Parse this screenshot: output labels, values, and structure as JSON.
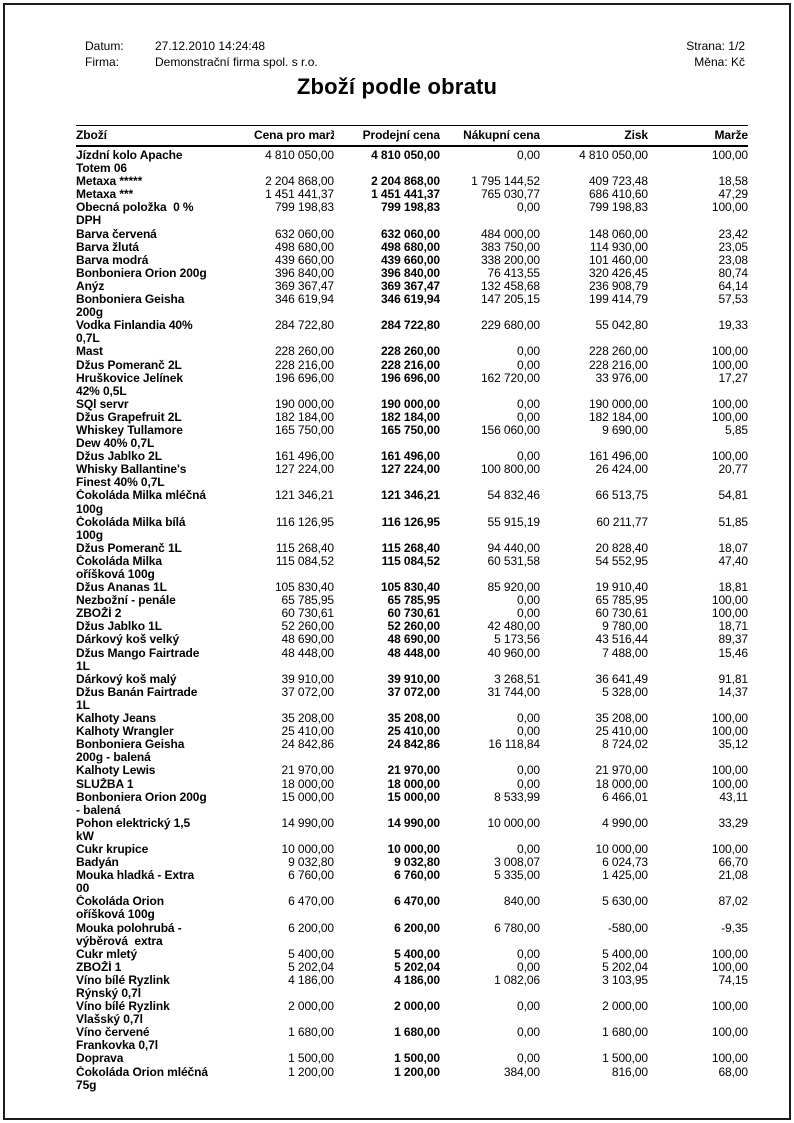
{
  "header": {
    "date_label": "Datum:",
    "date_value": "27.12.2010 14:24:48",
    "company_label": "Firma:",
    "company_value": "Demonstrační firma spol. s r.o.",
    "page_info": "Strana: 1/2",
    "currency_info": "Měna: Kč"
  },
  "title": "Zboží podle obratu",
  "table": {
    "columns": [
      "Zboží",
      "Cena pro marži",
      "Prodejní cena",
      "Nákupní cena",
      "Zisk",
      "Marže"
    ],
    "rows": [
      {
        "name": "Jízdní kolo Apache\nTotem 06",
        "cena_pro_marzi": "4 810 050,00",
        "prodejni_cena": "4 810 050,00",
        "nakupni_cena": "0,00",
        "zisk": "4 810 050,00",
        "marze": "100,00"
      },
      {
        "name": "Metaxa *****",
        "cena_pro_marzi": "2 204 868,00",
        "prodejni_cena": "2 204 868,00",
        "nakupni_cena": "1 795 144,52",
        "zisk": "409 723,48",
        "marze": "18,58"
      },
      {
        "name": "Metaxa ***",
        "cena_pro_marzi": "1 451 441,37",
        "prodejni_cena": "1 451 441,37",
        "nakupni_cena": "765 030,77",
        "zisk": "686 410,60",
        "marze": "47,29"
      },
      {
        "name": "Obecná položka  0 %\nDPH",
        "cena_pro_marzi": "799 198,83",
        "prodejni_cena": "799 198,83",
        "nakupni_cena": "0,00",
        "zisk": "799 198,83",
        "marze": "100,00"
      },
      {
        "name": "Barva červená",
        "cena_pro_marzi": "632 060,00",
        "prodejni_cena": "632 060,00",
        "nakupni_cena": "484 000,00",
        "zisk": "148 060,00",
        "marze": "23,42"
      },
      {
        "name": "Barva žlutá",
        "cena_pro_marzi": "498 680,00",
        "prodejni_cena": "498 680,00",
        "nakupni_cena": "383 750,00",
        "zisk": "114 930,00",
        "marze": "23,05"
      },
      {
        "name": "Barva modrá",
        "cena_pro_marzi": "439 660,00",
        "prodejni_cena": "439 660,00",
        "nakupni_cena": "338 200,00",
        "zisk": "101 460,00",
        "marze": "23,08"
      },
      {
        "name": "Bonboniera Orion 200g",
        "cena_pro_marzi": "396 840,00",
        "prodejni_cena": "396 840,00",
        "nakupni_cena": "76 413,55",
        "zisk": "320 426,45",
        "marze": "80,74"
      },
      {
        "name": "Anýz",
        "cena_pro_marzi": "369 367,47",
        "prodejni_cena": "369 367,47",
        "nakupni_cena": "132 458,68",
        "zisk": "236 908,79",
        "marze": "64,14"
      },
      {
        "name": "Bonboniera Geisha\n200g",
        "cena_pro_marzi": "346 619,94",
        "prodejni_cena": "346 619,94",
        "nakupni_cena": "147 205,15",
        "zisk": "199 414,79",
        "marze": "57,53"
      },
      {
        "name": "Vodka Finlandia 40%\n0,7L",
        "cena_pro_marzi": "284 722,80",
        "prodejni_cena": "284 722,80",
        "nakupni_cena": "229 680,00",
        "zisk": "55 042,80",
        "marze": "19,33"
      },
      {
        "name": "Mast",
        "cena_pro_marzi": "228 260,00",
        "prodejni_cena": "228 260,00",
        "nakupni_cena": "0,00",
        "zisk": "228 260,00",
        "marze": "100,00"
      },
      {
        "name": "Džus Pomeranč 2L",
        "cena_pro_marzi": "228 216,00",
        "prodejni_cena": "228 216,00",
        "nakupni_cena": "0,00",
        "zisk": "228 216,00",
        "marze": "100,00"
      },
      {
        "name": "Hruškovice Jelínek\n42% 0,5L",
        "cena_pro_marzi": "196 696,00",
        "prodejni_cena": "196 696,00",
        "nakupni_cena": "162 720,00",
        "zisk": "33 976,00",
        "marze": "17,27"
      },
      {
        "name": "SQl servr",
        "cena_pro_marzi": "190 000,00",
        "prodejni_cena": "190 000,00",
        "nakupni_cena": "0,00",
        "zisk": "190 000,00",
        "marze": "100,00"
      },
      {
        "name": "Džus Grapefruit 2L",
        "cena_pro_marzi": "182 184,00",
        "prodejni_cena": "182 184,00",
        "nakupni_cena": "0,00",
        "zisk": "182 184,00",
        "marze": "100,00"
      },
      {
        "name": "Whiskey Tullamore\nDew 40% 0,7L",
        "cena_pro_marzi": "165 750,00",
        "prodejni_cena": "165 750,00",
        "nakupni_cena": "156 060,00",
        "zisk": "9 690,00",
        "marze": "5,85"
      },
      {
        "name": "Džus Jablko 2L",
        "cena_pro_marzi": "161 496,00",
        "prodejni_cena": "161 496,00",
        "nakupni_cena": "0,00",
        "zisk": "161 496,00",
        "marze": "100,00"
      },
      {
        "name": "Whisky Ballantine's\nFinest 40% 0,7L",
        "cena_pro_marzi": "127 224,00",
        "prodejni_cena": "127 224,00",
        "nakupni_cena": "100 800,00",
        "zisk": "26 424,00",
        "marze": "20,77"
      },
      {
        "name": "Čokoláda Milka mléčná\n100g",
        "cena_pro_marzi": "121 346,21",
        "prodejni_cena": "121 346,21",
        "nakupni_cena": "54 832,46",
        "zisk": "66 513,75",
        "marze": "54,81"
      },
      {
        "name": "Čokoláda Milka bílá\n100g",
        "cena_pro_marzi": "116 126,95",
        "prodejni_cena": "116 126,95",
        "nakupni_cena": "55 915,19",
        "zisk": "60 211,77",
        "marze": "51,85"
      },
      {
        "name": "Džus Pomeranč 1L",
        "cena_pro_marzi": "115 268,40",
        "prodejni_cena": "115 268,40",
        "nakupni_cena": "94 440,00",
        "zisk": "20 828,40",
        "marze": "18,07"
      },
      {
        "name": "Čokoláda Milka\noříšková 100g",
        "cena_pro_marzi": "115 084,52",
        "prodejni_cena": "115 084,52",
        "nakupni_cena": "60 531,58",
        "zisk": "54 552,95",
        "marze": "47,40"
      },
      {
        "name": "Džus Ananas 1L",
        "cena_pro_marzi": "105 830,40",
        "prodejni_cena": "105 830,40",
        "nakupni_cena": "85 920,00",
        "zisk": "19 910,40",
        "marze": "18,81"
      },
      {
        "name": "Nezbožní - penále",
        "cena_pro_marzi": "65 785,95",
        "prodejni_cena": "65 785,95",
        "nakupni_cena": "0,00",
        "zisk": "65 785,95",
        "marze": "100,00"
      },
      {
        "name": "ZBOŽÍ 2",
        "cena_pro_marzi": "60 730,61",
        "prodejni_cena": "60 730,61",
        "nakupni_cena": "0,00",
        "zisk": "60 730,61",
        "marze": "100,00"
      },
      {
        "name": "Džus Jablko 1L",
        "cena_pro_marzi": "52 260,00",
        "prodejni_cena": "52 260,00",
        "nakupni_cena": "42 480,00",
        "zisk": "9 780,00",
        "marze": "18,71"
      },
      {
        "name": "Dárkový koš velký",
        "cena_pro_marzi": "48 690,00",
        "prodejni_cena": "48 690,00",
        "nakupni_cena": "5 173,56",
        "zisk": "43 516,44",
        "marze": "89,37"
      },
      {
        "name": "Džus Mango Fairtrade\n1L",
        "cena_pro_marzi": "48 448,00",
        "prodejni_cena": "48 448,00",
        "nakupni_cena": "40 960,00",
        "zisk": "7 488,00",
        "marze": "15,46"
      },
      {
        "name": "Dárkový koš malý",
        "cena_pro_marzi": "39 910,00",
        "prodejni_cena": "39 910,00",
        "nakupni_cena": "3 268,51",
        "zisk": "36 641,49",
        "marze": "91,81"
      },
      {
        "name": "Džus Banán Fairtrade\n1L",
        "cena_pro_marzi": "37 072,00",
        "prodejni_cena": "37 072,00",
        "nakupni_cena": "31 744,00",
        "zisk": "5 328,00",
        "marze": "14,37"
      },
      {
        "name": "Kalhoty Jeans",
        "cena_pro_marzi": "35 208,00",
        "prodejni_cena": "35 208,00",
        "nakupni_cena": "0,00",
        "zisk": "35 208,00",
        "marze": "100,00"
      },
      {
        "name": "Kalhoty Wrangler",
        "cena_pro_marzi": "25 410,00",
        "prodejni_cena": "25 410,00",
        "nakupni_cena": "0,00",
        "zisk": "25 410,00",
        "marze": "100,00"
      },
      {
        "name": "Bonboniera Geisha\n200g - balená",
        "cena_pro_marzi": "24 842,86",
        "prodejni_cena": "24 842,86",
        "nakupni_cena": "16 118,84",
        "zisk": "8 724,02",
        "marze": "35,12"
      },
      {
        "name": "Kalhoty Lewis",
        "cena_pro_marzi": "21 970,00",
        "prodejni_cena": "21 970,00",
        "nakupni_cena": "0,00",
        "zisk": "21 970,00",
        "marze": "100,00"
      },
      {
        "name": "SLUŽBA 1",
        "cena_pro_marzi": "18 000,00",
        "prodejni_cena": "18 000,00",
        "nakupni_cena": "0,00",
        "zisk": "18 000,00",
        "marze": "100,00"
      },
      {
        "name": "Bonboniera Orion 200g\n- balená",
        "cena_pro_marzi": "15 000,00",
        "prodejni_cena": "15 000,00",
        "nakupni_cena": "8 533,99",
        "zisk": "6 466,01",
        "marze": "43,11"
      },
      {
        "name": "Pohon elektrický 1,5\nkW",
        "cena_pro_marzi": "14 990,00",
        "prodejni_cena": "14 990,00",
        "nakupni_cena": "10 000,00",
        "zisk": "4 990,00",
        "marze": "33,29"
      },
      {
        "name": "Cukr krupice",
        "cena_pro_marzi": "10 000,00",
        "prodejni_cena": "10 000,00",
        "nakupni_cena": "0,00",
        "zisk": "10 000,00",
        "marze": "100,00"
      },
      {
        "name": "Badyán",
        "cena_pro_marzi": "9 032,80",
        "prodejni_cena": "9 032,80",
        "nakupni_cena": "3 008,07",
        "zisk": "6 024,73",
        "marze": "66,70"
      },
      {
        "name": "Mouka hladká - Extra\n00",
        "cena_pro_marzi": "6 760,00",
        "prodejni_cena": "6 760,00",
        "nakupni_cena": "5 335,00",
        "zisk": "1 425,00",
        "marze": "21,08"
      },
      {
        "name": "Čokoláda Orion\noříšková 100g",
        "cena_pro_marzi": "6 470,00",
        "prodejni_cena": "6 470,00",
        "nakupni_cena": "840,00",
        "zisk": "5 630,00",
        "marze": "87,02"
      },
      {
        "name": "Mouka polohrubá -\nvýběrová  extra",
        "cena_pro_marzi": "6 200,00",
        "prodejni_cena": "6 200,00",
        "nakupni_cena": "6 780,00",
        "zisk": "-580,00",
        "marze": "-9,35"
      },
      {
        "name": "Cukr mletý",
        "cena_pro_marzi": "5 400,00",
        "prodejni_cena": "5 400,00",
        "nakupni_cena": "0,00",
        "zisk": "5 400,00",
        "marze": "100,00"
      },
      {
        "name": "ZBOŽÍ 1",
        "cena_pro_marzi": "5 202,04",
        "prodejni_cena": "5 202,04",
        "nakupni_cena": "0,00",
        "zisk": "5 202,04",
        "marze": "100,00"
      },
      {
        "name": "Víno bílé Ryzlink\nRýnský 0,7l",
        "cena_pro_marzi": "4 186,00",
        "prodejni_cena": "4 186,00",
        "nakupni_cena": "1 082,06",
        "zisk": "3 103,95",
        "marze": "74,15"
      },
      {
        "name": "Víno bílé Ryzlink\nVlašský 0,7l",
        "cena_pro_marzi": "2 000,00",
        "prodejni_cena": "2 000,00",
        "nakupni_cena": "0,00",
        "zisk": "2 000,00",
        "marze": "100,00"
      },
      {
        "name": "Víno červené\nFrankovka 0,7l",
        "cena_pro_marzi": "1 680,00",
        "prodejni_cena": "1 680,00",
        "nakupni_cena": "0,00",
        "zisk": "1 680,00",
        "marze": "100,00"
      },
      {
        "name": "Doprava",
        "cena_pro_marzi": "1 500,00",
        "prodejni_cena": "1 500,00",
        "nakupni_cena": "0,00",
        "zisk": "1 500,00",
        "marze": "100,00"
      },
      {
        "name": "Čokoláda Orion mléčná\n75g",
        "cena_pro_marzi": "1 200,00",
        "prodejni_cena": "1 200,00",
        "nakupni_cena": "384,00",
        "zisk": "816,00",
        "marze": "68,00"
      }
    ]
  }
}
